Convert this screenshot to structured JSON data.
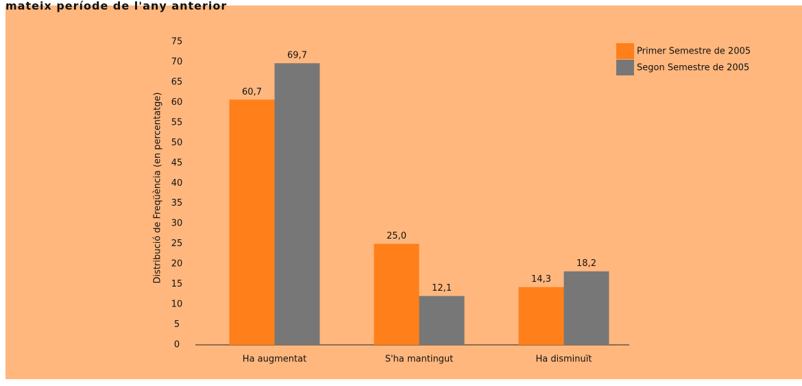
{
  "chart_data": {
    "type": "bar",
    "title": "mateix període de l'any anterior",
    "y_label": "Distribució de Freqüència  (en percentatge)",
    "categories": [
      "Ha augmentat",
      "S'ha mantingut",
      "Ha disminuït"
    ],
    "series": [
      {
        "name": "Primer Semestre de 2005",
        "color": "#FF7F1A",
        "values": [
          60.7,
          25.0,
          14.3
        ],
        "value_labels": [
          "60,7",
          "25,0",
          "14,3"
        ]
      },
      {
        "name": "Segon Semestre de 2005",
        "color": "#777777",
        "values": [
          69.7,
          12.1,
          18.2
        ],
        "value_labels": [
          "69,7",
          "12,1",
          "18,2"
        ]
      }
    ],
    "ylim": [
      0,
      75
    ],
    "yticks": [
      0,
      5,
      10,
      15,
      20,
      25,
      30,
      35,
      40,
      45,
      50,
      55,
      60,
      65,
      70,
      75
    ],
    "legend": "top-right"
  }
}
